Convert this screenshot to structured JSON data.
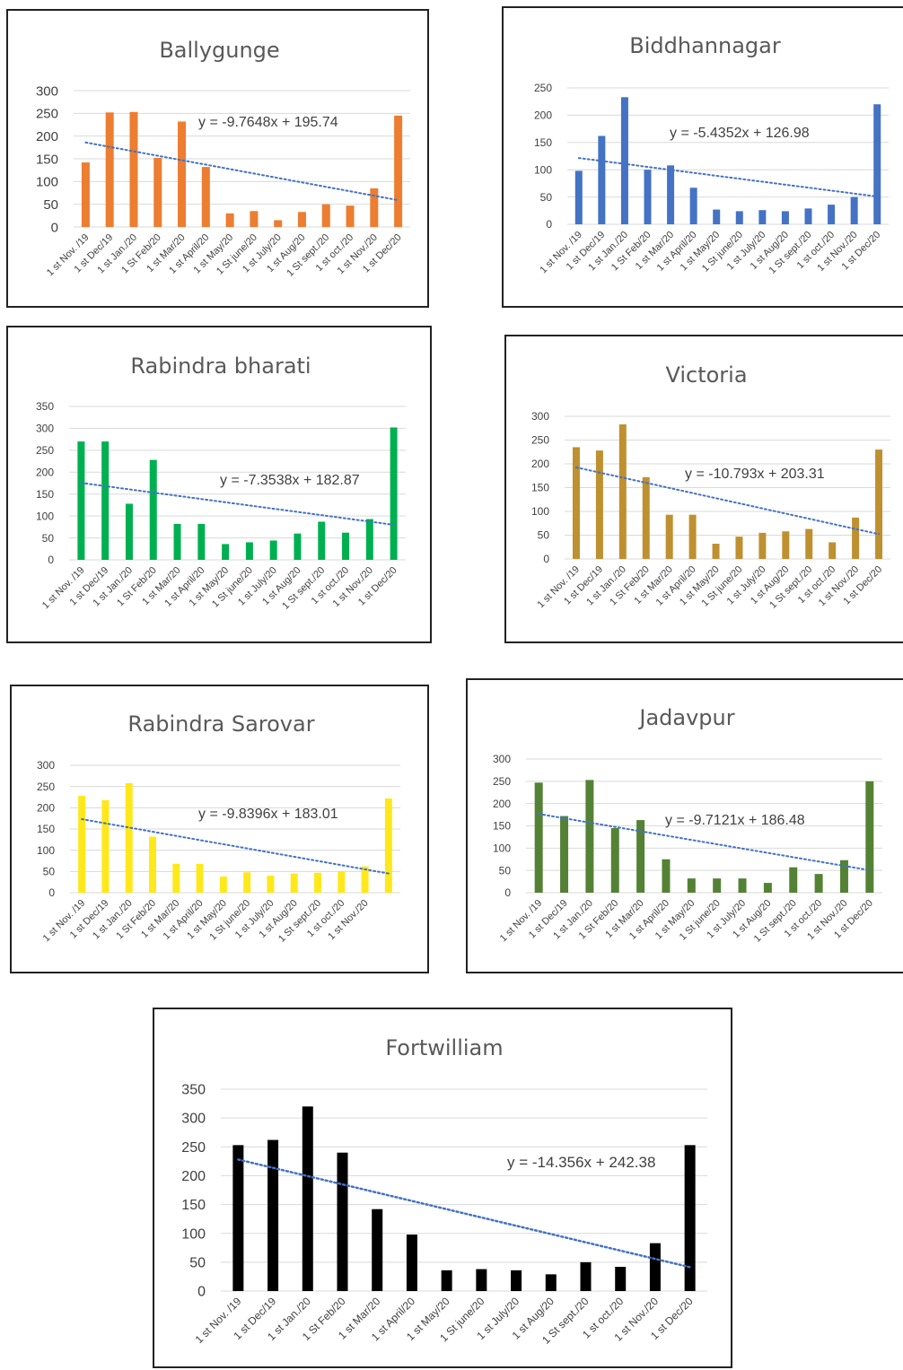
{
  "chart_data": [
    {
      "type": "bar",
      "title": "Ballygunge",
      "categories": [
        "1 st Nov. /19",
        "1 st Dec/19",
        "1 st Jan./20",
        "1 St Feb/20",
        "1 st Mar/20",
        "1 st April/20",
        "1 st May/20",
        "1 St june/20",
        "1 st July/20",
        "1 st Aug/20",
        "1 St sept./20",
        "1 st oct./20",
        "1 st Nov./20",
        "1 st Dec/20"
      ],
      "values": [
        142,
        252,
        253,
        152,
        232,
        132,
        30,
        35,
        15,
        33,
        50,
        47,
        85,
        245
      ],
      "ylim": [
        0,
        300
      ],
      "yticks": [
        "0",
        "50",
        "100",
        "150",
        "200",
        "250",
        "300"
      ],
      "trendline": {
        "slope": -9.7648,
        "intercept": 195.74,
        "equation": "y = -9.7648x + 195.74"
      },
      "color": "#ed7d31",
      "xlabel": "",
      "ylabel": "",
      "grid": true,
      "legend": "none"
    },
    {
      "type": "bar",
      "title": "Biddhannagar",
      "categories": [
        "1 st Nov. /19",
        "1 st Dec/19",
        "1 st Jan./20",
        "1 St Feb/20",
        "1 st Mar/20",
        "1 st April/20",
        "1 st May/20",
        "1 St june/20",
        "1 st July/20",
        "1 st Aug/20",
        "1 St sept./20",
        "1 st oct./20",
        "1 st Nov./20",
        "1 st Dec/20"
      ],
      "values": [
        98,
        162,
        233,
        100,
        108,
        67,
        27,
        24,
        26,
        24,
        29,
        36,
        50,
        220
      ],
      "ylim": [
        0,
        250
      ],
      "yticks": [
        "0",
        "50",
        "100",
        "150",
        "200",
        "250"
      ],
      "trendline": {
        "slope": -5.4352,
        "intercept": 126.98,
        "equation": "y = -5.4352x + 126.98"
      },
      "color": "#4472c4",
      "xlabel": "",
      "ylabel": "",
      "grid": true,
      "legend": "none"
    },
    {
      "type": "bar",
      "title": "Rabindra bharati",
      "categories": [
        "1 st Nov. /19",
        "1 st Dec/19",
        "1 st Jan./20",
        "1 St Feb/20",
        "1 st Mar/20",
        "1 st April/20",
        "1 st May/20",
        "1 St june/20",
        "1 st July/20",
        "1 st Aug/20",
        "1 St sept./20",
        "1 st oct./20",
        "1 st Nov./20",
        "1 st Dec/20"
      ],
      "values": [
        270,
        270,
        128,
        228,
        82,
        82,
        36,
        40,
        44,
        60,
        87,
        62,
        93,
        302
      ],
      "ylim": [
        0,
        350
      ],
      "yticks": [
        "0",
        "50",
        "100",
        "150",
        "200",
        "250",
        "300",
        "350"
      ],
      "trendline": {
        "slope": -7.3538,
        "intercept": 182.87,
        "equation": "y = -7.3538x + 182.87"
      },
      "color": "#00b050",
      "xlabel": "",
      "ylabel": "",
      "grid": true,
      "legend": "none"
    },
    {
      "type": "bar",
      "title": "Victoria",
      "categories": [
        "1 st Nov. /19",
        "1 st Dec/19",
        "1 st Jan./20",
        "1 St Feb/20",
        "1 st Mar/20",
        "1 st April/20",
        "1 st May/20",
        "1 St june/20",
        "1 st July/20",
        "1 st Aug/20",
        "1 St sept./20",
        "1 st oct./20",
        "1 st Nov./20",
        "1 st Dec/20"
      ],
      "values": [
        235,
        228,
        283,
        172,
        93,
        93,
        32,
        47,
        55,
        58,
        63,
        35,
        87,
        230
      ],
      "ylim": [
        0,
        300
      ],
      "yticks": [
        "0",
        "50",
        "100",
        "150",
        "200",
        "250",
        "300"
      ],
      "trendline": {
        "slope": -10.793,
        "intercept": 203.31,
        "equation": "y = -10.793x + 203.31"
      },
      "color": "#bf9030",
      "xlabel": "",
      "ylabel": "",
      "grid": true,
      "legend": "none"
    },
    {
      "type": "bar",
      "title": "Rabindra Sarovar",
      "categories": [
        "1 st Nov. /19",
        "1 st Dec/19",
        "1 st Jan./20",
        "1 St Feb/20",
        "1 st Mar/20",
        "1 st April/20",
        "1 st May/20",
        "1 St june/20",
        "1 st July/20",
        "1 st Aug/20",
        "1 St sept./20",
        "1 st oct./20",
        "1 st Nov./20",
        ""
      ],
      "values": [
        228,
        218,
        258,
        132,
        68,
        68,
        38,
        48,
        40,
        45,
        47,
        50,
        62,
        222
      ],
      "ylim": [
        0,
        300
      ],
      "yticks": [
        "0",
        "50",
        "100",
        "150",
        "200",
        "250",
        "300"
      ],
      "trendline": {
        "slope": -9.8396,
        "intercept": 183.01,
        "equation": "y = -9.8396x + 183.01"
      },
      "color": "#ffe81a",
      "xlabel": "",
      "ylabel": "",
      "grid": true,
      "legend": "none"
    },
    {
      "type": "bar",
      "title": "Jadavpur",
      "categories": [
        "1 st Nov. /19",
        "1 st Dec/19",
        "1 st Jan./20",
        "1 St Feb/20",
        "1 st Mar/20",
        "1 st April/20",
        "1 st May/20",
        "1 St june/20",
        "1 st July/20",
        "1 st Aug/20",
        "1 St sept./20",
        "1 st oct./20",
        "1 st Nov./20",
        "1 st Dec/20"
      ],
      "values": [
        247,
        172,
        253,
        145,
        163,
        75,
        32,
        32,
        32,
        22,
        57,
        42,
        73,
        250
      ],
      "ylim": [
        0,
        300
      ],
      "yticks": [
        "0",
        "50",
        "100",
        "150",
        "200",
        "250",
        "300"
      ],
      "trendline": {
        "slope": -9.7121,
        "intercept": 186.48,
        "equation": "y = -9.7121x + 186.48"
      },
      "color": "#548235",
      "xlabel": "",
      "ylabel": "",
      "grid": true,
      "legend": "none"
    },
    {
      "type": "bar",
      "title": "Fortwilliam",
      "categories": [
        "1 st Nov. /19",
        "1 st Dec/19",
        "1 st Jan./20",
        "1 St Feb/20",
        "1 st Mar/20",
        "1 st April/20",
        "1 st May/20",
        "1 St june/20",
        "1 st July/20",
        "1 st Aug/20",
        "1 St sept./20",
        "1 st oct./20",
        "1 st Nov./20",
        "1 st Dec/20"
      ],
      "values": [
        253,
        262,
        320,
        240,
        142,
        98,
        36,
        38,
        36,
        29,
        50,
        42,
        83,
        253
      ],
      "ylim": [
        0,
        350
      ],
      "yticks": [
        "0",
        "50",
        "100",
        "150",
        "200",
        "250",
        "300",
        "350"
      ],
      "trendline": {
        "slope": -14.356,
        "intercept": 242.38,
        "equation": "y = -14.356x + 242.38"
      },
      "color": "#000000",
      "xlabel": "",
      "ylabel": "",
      "grid": true,
      "legend": "none"
    }
  ]
}
